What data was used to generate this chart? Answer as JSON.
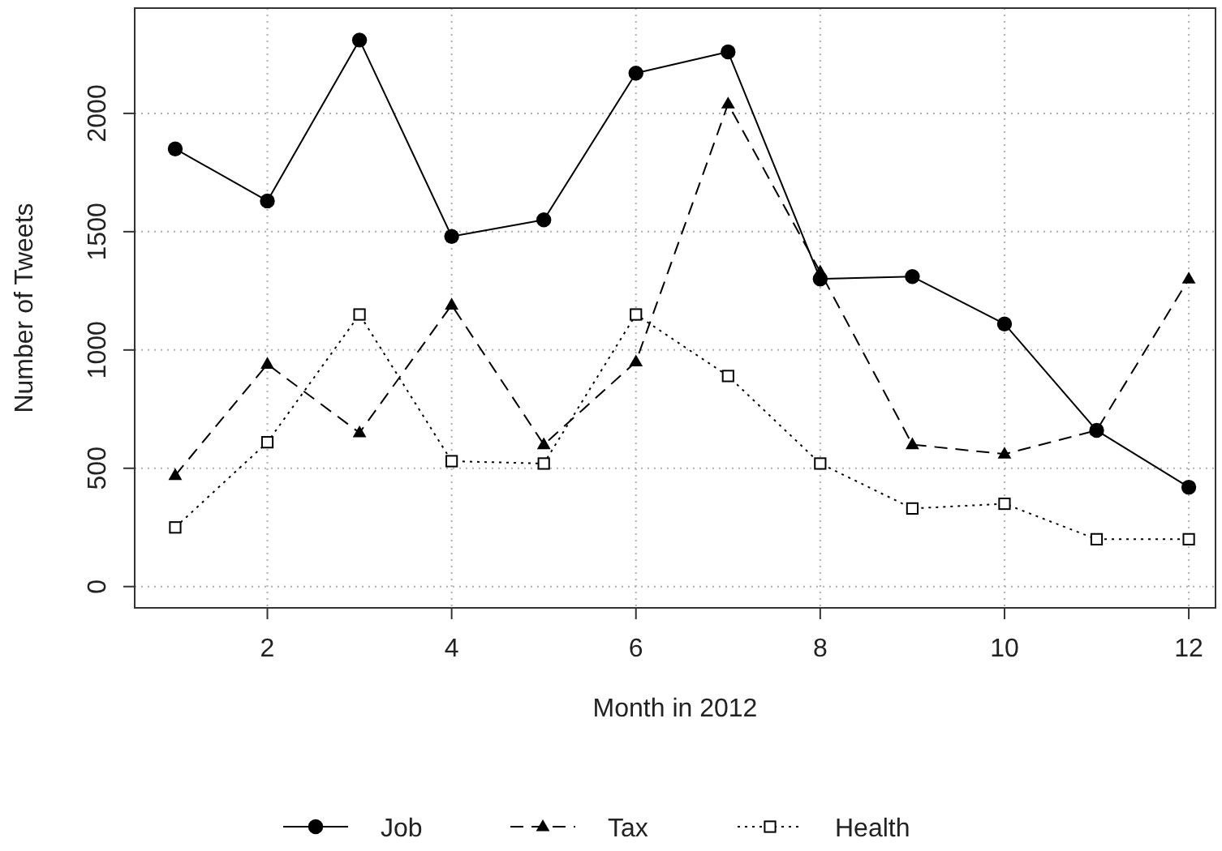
{
  "chart_data": {
    "type": "line",
    "xlabel": "Month in 2012",
    "ylabel": "Number of Tweets",
    "x": [
      1,
      2,
      3,
      4,
      5,
      6,
      7,
      8,
      9,
      10,
      11,
      12
    ],
    "xlim": [
      0.56,
      12.29
    ],
    "xticks": [
      2,
      4,
      6,
      8,
      10,
      12
    ],
    "ylim": [
      -90,
      2445
    ],
    "yticks": [
      0,
      500,
      1000,
      1500,
      2000
    ],
    "grid": true,
    "legend": "bottom",
    "series": [
      {
        "name": "Job",
        "color": "#000000",
        "marker": "circle",
        "line_style": "solid",
        "values": [
          1850,
          1630,
          2310,
          1480,
          1550,
          2170,
          2260,
          1300,
          1310,
          1110,
          660,
          420
        ]
      },
      {
        "name": "Tax",
        "color": "#000000",
        "marker": "triangle",
        "line_style": "dashed",
        "values": [
          470,
          940,
          650,
          1190,
          600,
          950,
          2040,
          1330,
          600,
          560,
          660,
          1300
        ]
      },
      {
        "name": "Health",
        "color": "#000000",
        "marker": "square",
        "line_style": "dotted",
        "values": [
          250,
          610,
          1150,
          530,
          520,
          1150,
          890,
          520,
          330,
          350,
          200,
          200
        ]
      }
    ]
  }
}
